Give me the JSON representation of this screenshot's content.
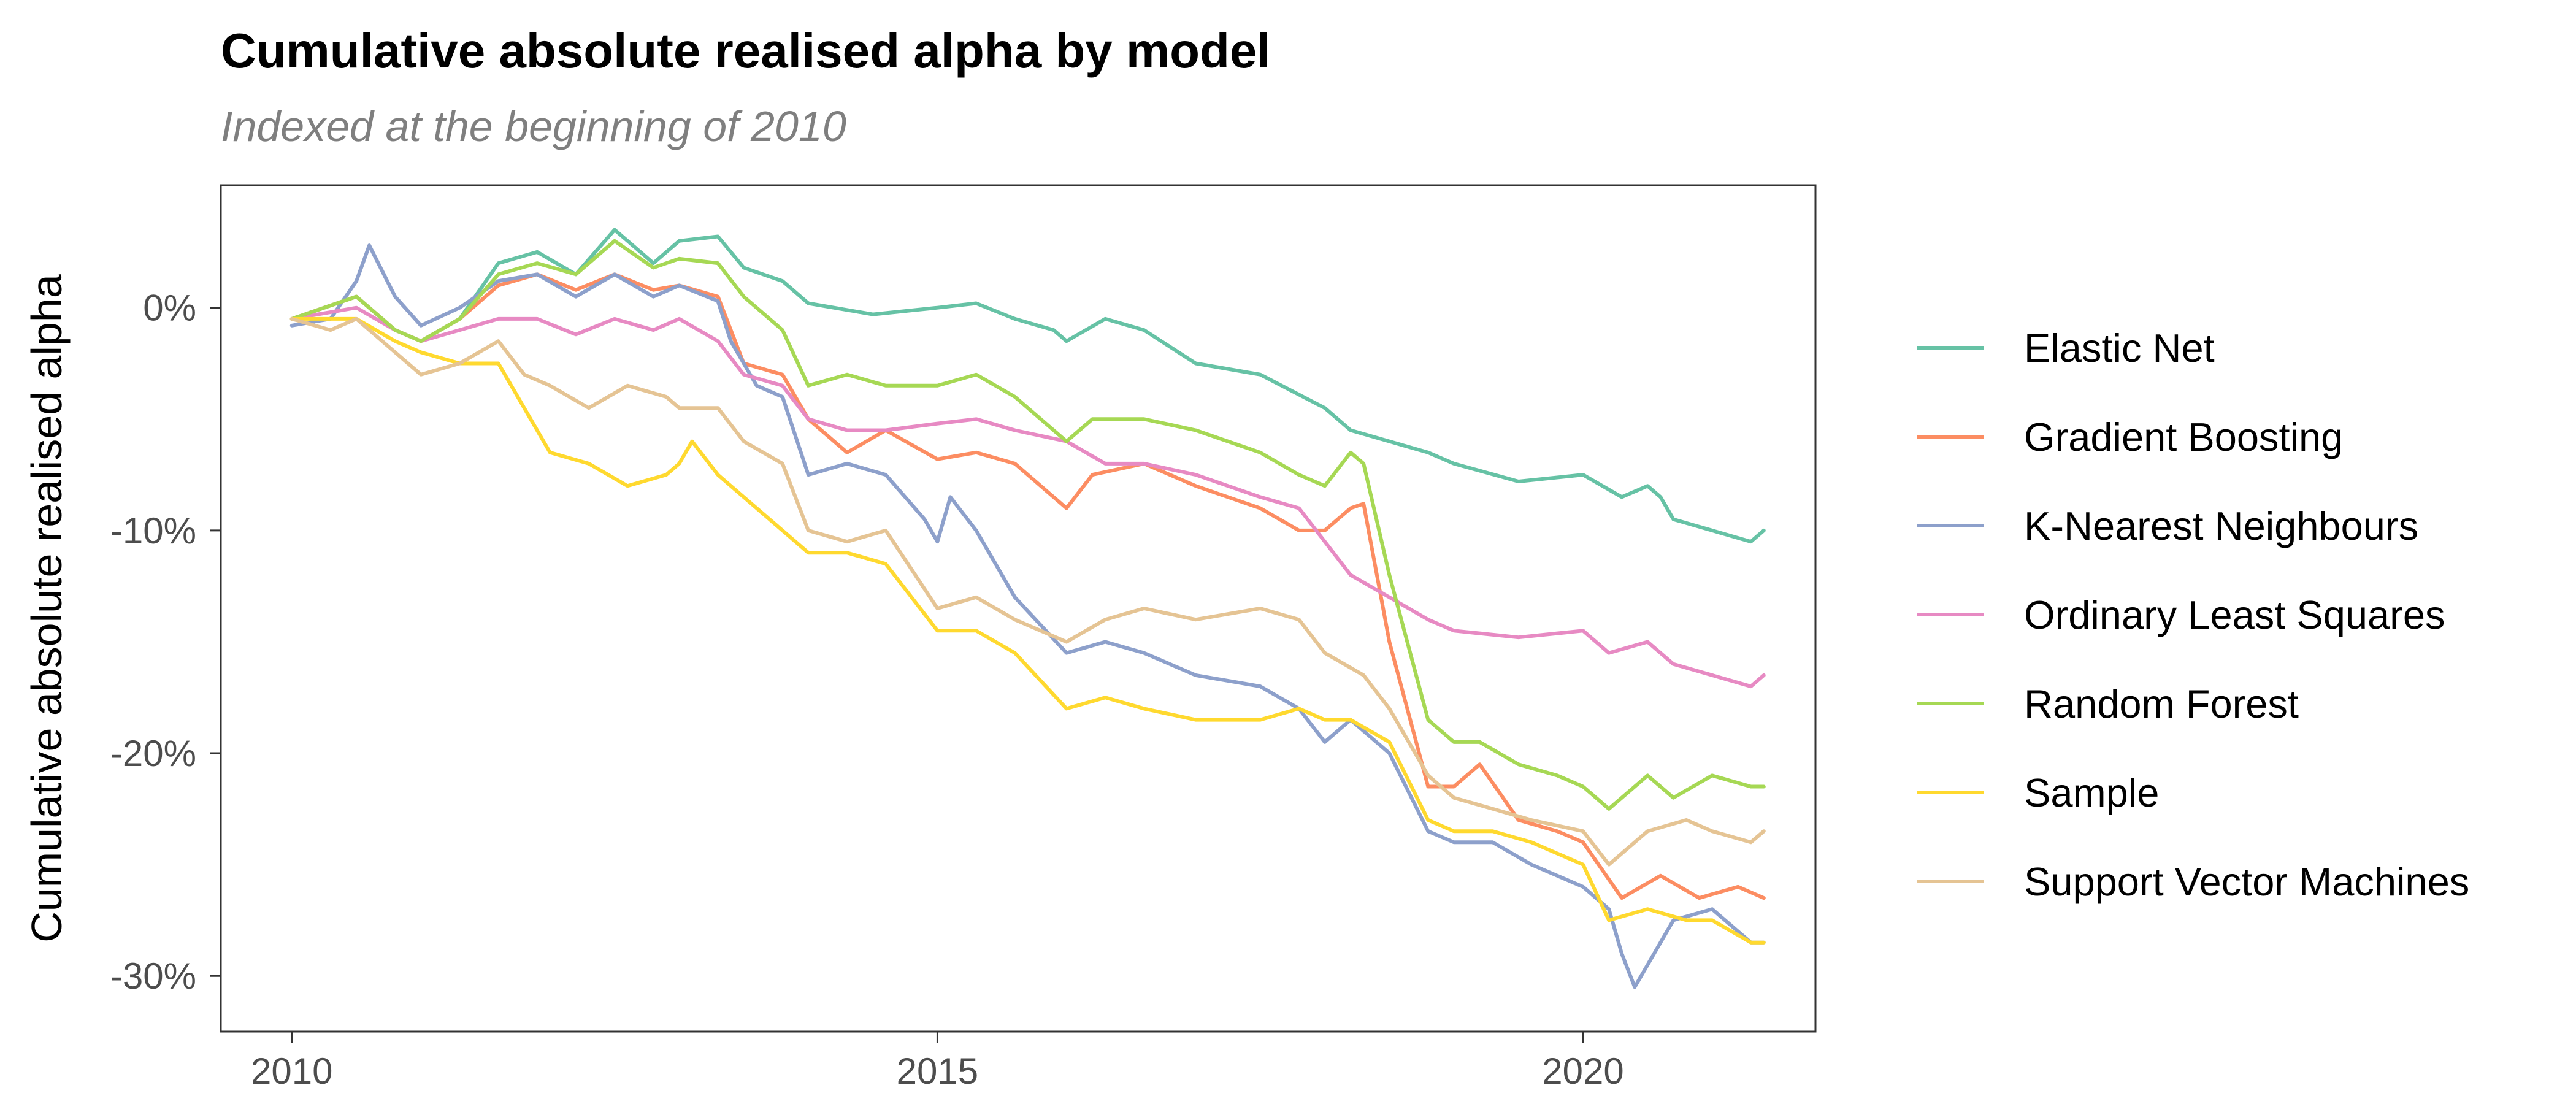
{
  "chart_data": {
    "type": "line",
    "title": "Cumulative absolute realised alpha by model",
    "subtitle": "Indexed at the beginning of 2010",
    "xlabel": "",
    "ylabel": "Cumulative absolute realised alpha",
    "xlim": [
      2009.45,
      2021.8
    ],
    "ylim": [
      -32.5,
      5.5
    ],
    "x_ticks": [
      2010,
      2015,
      2020
    ],
    "x_tick_labels": [
      "2010",
      "2015",
      "2020"
    ],
    "y_ticks": [
      0,
      -10,
      -20,
      -30
    ],
    "y_tick_labels": [
      "0%",
      "-10%",
      "-20%",
      "-30%"
    ],
    "grid": false,
    "legend_position": "right",
    "series": [
      {
        "name": "Elastic Net",
        "color": "#66c2a5",
        "points": [
          [
            2010.0,
            -0.5
          ],
          [
            2010.5,
            0.5
          ],
          [
            2010.8,
            -1.0
          ],
          [
            2011.0,
            -1.5
          ],
          [
            2011.3,
            -0.5
          ],
          [
            2011.6,
            2.0
          ],
          [
            2011.9,
            2.5
          ],
          [
            2012.2,
            1.5
          ],
          [
            2012.5,
            3.5
          ],
          [
            2012.8,
            2.0
          ],
          [
            2013.0,
            3.0
          ],
          [
            2013.3,
            3.2
          ],
          [
            2013.5,
            1.8
          ],
          [
            2013.8,
            1.2
          ],
          [
            2014.0,
            0.2
          ],
          [
            2014.5,
            -0.3
          ],
          [
            2015.0,
            0.0
          ],
          [
            2015.3,
            0.2
          ],
          [
            2015.6,
            -0.5
          ],
          [
            2015.9,
            -1.0
          ],
          [
            2016.0,
            -1.5
          ],
          [
            2016.3,
            -0.5
          ],
          [
            2016.6,
            -1.0
          ],
          [
            2017.0,
            -2.5
          ],
          [
            2017.5,
            -3.0
          ],
          [
            2018.0,
            -4.5
          ],
          [
            2018.2,
            -5.5
          ],
          [
            2018.5,
            -6.0
          ],
          [
            2018.8,
            -6.5
          ],
          [
            2019.0,
            -7.0
          ],
          [
            2019.5,
            -7.8
          ],
          [
            2020.0,
            -7.5
          ],
          [
            2020.3,
            -8.5
          ],
          [
            2020.5,
            -8.0
          ],
          [
            2020.6,
            -8.5
          ],
          [
            2020.7,
            -9.5
          ],
          [
            2021.0,
            -10.0
          ],
          [
            2021.3,
            -10.5
          ],
          [
            2021.4,
            -10.0
          ]
        ]
      },
      {
        "name": "Gradient Boosting",
        "color": "#fc8d62",
        "points": [
          [
            2010.0,
            -0.5
          ],
          [
            2010.5,
            0.5
          ],
          [
            2010.8,
            -1.0
          ],
          [
            2011.0,
            -1.5
          ],
          [
            2011.3,
            -0.5
          ],
          [
            2011.6,
            1.0
          ],
          [
            2011.9,
            1.5
          ],
          [
            2012.2,
            0.8
          ],
          [
            2012.5,
            1.5
          ],
          [
            2012.8,
            0.8
          ],
          [
            2013.0,
            1.0
          ],
          [
            2013.3,
            0.5
          ],
          [
            2013.5,
            -2.5
          ],
          [
            2013.8,
            -3.0
          ],
          [
            2014.0,
            -5.0
          ],
          [
            2014.3,
            -6.5
          ],
          [
            2014.6,
            -5.5
          ],
          [
            2015.0,
            -6.8
          ],
          [
            2015.3,
            -6.5
          ],
          [
            2015.6,
            -7.0
          ],
          [
            2016.0,
            -9.0
          ],
          [
            2016.2,
            -7.5
          ],
          [
            2016.6,
            -7.0
          ],
          [
            2017.0,
            -8.0
          ],
          [
            2017.5,
            -9.0
          ],
          [
            2017.8,
            -10.0
          ],
          [
            2018.0,
            -10.0
          ],
          [
            2018.2,
            -9.0
          ],
          [
            2018.3,
            -8.8
          ],
          [
            2018.5,
            -15.0
          ],
          [
            2018.8,
            -21.5
          ],
          [
            2019.0,
            -21.5
          ],
          [
            2019.2,
            -20.5
          ],
          [
            2019.5,
            -23.0
          ],
          [
            2019.8,
            -23.5
          ],
          [
            2020.0,
            -24.0
          ],
          [
            2020.3,
            -26.5
          ],
          [
            2020.6,
            -25.5
          ],
          [
            2020.9,
            -26.5
          ],
          [
            2021.2,
            -26.0
          ],
          [
            2021.4,
            -26.5
          ]
        ]
      },
      {
        "name": "K-Nearest Neighbours",
        "color": "#8da0cb",
        "points": [
          [
            2010.0,
            -0.8
          ],
          [
            2010.3,
            -0.5
          ],
          [
            2010.5,
            1.2
          ],
          [
            2010.6,
            2.8
          ],
          [
            2010.8,
            0.5
          ],
          [
            2011.0,
            -0.8
          ],
          [
            2011.3,
            0.0
          ],
          [
            2011.6,
            1.2
          ],
          [
            2011.9,
            1.5
          ],
          [
            2012.2,
            0.5
          ],
          [
            2012.5,
            1.5
          ],
          [
            2012.8,
            0.5
          ],
          [
            2013.0,
            1.0
          ],
          [
            2013.3,
            0.3
          ],
          [
            2013.4,
            -1.5
          ],
          [
            2013.6,
            -3.5
          ],
          [
            2013.8,
            -4.0
          ],
          [
            2014.0,
            -7.5
          ],
          [
            2014.3,
            -7.0
          ],
          [
            2014.6,
            -7.5
          ],
          [
            2014.9,
            -9.5
          ],
          [
            2015.0,
            -10.5
          ],
          [
            2015.1,
            -8.5
          ],
          [
            2015.3,
            -10.0
          ],
          [
            2015.6,
            -13.0
          ],
          [
            2016.0,
            -15.5
          ],
          [
            2016.3,
            -15.0
          ],
          [
            2016.6,
            -15.5
          ],
          [
            2017.0,
            -16.5
          ],
          [
            2017.5,
            -17.0
          ],
          [
            2017.8,
            -18.0
          ],
          [
            2018.0,
            -19.5
          ],
          [
            2018.2,
            -18.5
          ],
          [
            2018.5,
            -20.0
          ],
          [
            2018.8,
            -23.5
          ],
          [
            2019.0,
            -24.0
          ],
          [
            2019.3,
            -24.0
          ],
          [
            2019.6,
            -25.0
          ],
          [
            2020.0,
            -26.0
          ],
          [
            2020.2,
            -27.0
          ],
          [
            2020.3,
            -29.0
          ],
          [
            2020.4,
            -30.5
          ],
          [
            2020.5,
            -29.5
          ],
          [
            2020.7,
            -27.5
          ],
          [
            2021.0,
            -27.0
          ],
          [
            2021.3,
            -28.5
          ],
          [
            2021.4,
            -28.5
          ]
        ]
      },
      {
        "name": "Ordinary Least Squares",
        "color": "#e78ac3",
        "points": [
          [
            2010.0,
            -0.5
          ],
          [
            2010.5,
            0.0
          ],
          [
            2010.8,
            -1.0
          ],
          [
            2011.0,
            -1.5
          ],
          [
            2011.3,
            -1.0
          ],
          [
            2011.6,
            -0.5
          ],
          [
            2011.9,
            -0.5
          ],
          [
            2012.2,
            -1.2
          ],
          [
            2012.5,
            -0.5
          ],
          [
            2012.8,
            -1.0
          ],
          [
            2013.0,
            -0.5
          ],
          [
            2013.3,
            -1.5
          ],
          [
            2013.5,
            -3.0
          ],
          [
            2013.8,
            -3.5
          ],
          [
            2014.0,
            -5.0
          ],
          [
            2014.3,
            -5.5
          ],
          [
            2014.6,
            -5.5
          ],
          [
            2015.0,
            -5.2
          ],
          [
            2015.3,
            -5.0
          ],
          [
            2015.6,
            -5.5
          ],
          [
            2016.0,
            -6.0
          ],
          [
            2016.3,
            -7.0
          ],
          [
            2016.6,
            -7.0
          ],
          [
            2017.0,
            -7.5
          ],
          [
            2017.5,
            -8.5
          ],
          [
            2017.8,
            -9.0
          ],
          [
            2018.0,
            -10.5
          ],
          [
            2018.2,
            -12.0
          ],
          [
            2018.5,
            -13.0
          ],
          [
            2018.8,
            -14.0
          ],
          [
            2019.0,
            -14.5
          ],
          [
            2019.5,
            -14.8
          ],
          [
            2020.0,
            -14.5
          ],
          [
            2020.2,
            -15.5
          ],
          [
            2020.5,
            -15.0
          ],
          [
            2020.7,
            -16.0
          ],
          [
            2021.0,
            -16.5
          ],
          [
            2021.3,
            -17.0
          ],
          [
            2021.4,
            -16.5
          ]
        ]
      },
      {
        "name": "Random Forest",
        "color": "#a6d854",
        "points": [
          [
            2010.0,
            -0.5
          ],
          [
            2010.5,
            0.5
          ],
          [
            2010.8,
            -1.0
          ],
          [
            2011.0,
            -1.5
          ],
          [
            2011.3,
            -0.5
          ],
          [
            2011.6,
            1.5
          ],
          [
            2011.9,
            2.0
          ],
          [
            2012.2,
            1.5
          ],
          [
            2012.5,
            3.0
          ],
          [
            2012.8,
            1.8
          ],
          [
            2013.0,
            2.2
          ],
          [
            2013.3,
            2.0
          ],
          [
            2013.5,
            0.5
          ],
          [
            2013.8,
            -1.0
          ],
          [
            2014.0,
            -3.5
          ],
          [
            2014.3,
            -3.0
          ],
          [
            2014.6,
            -3.5
          ],
          [
            2015.0,
            -3.5
          ],
          [
            2015.3,
            -3.0
          ],
          [
            2015.6,
            -4.0
          ],
          [
            2016.0,
            -6.0
          ],
          [
            2016.2,
            -5.0
          ],
          [
            2016.6,
            -5.0
          ],
          [
            2017.0,
            -5.5
          ],
          [
            2017.5,
            -6.5
          ],
          [
            2017.8,
            -7.5
          ],
          [
            2018.0,
            -8.0
          ],
          [
            2018.2,
            -6.5
          ],
          [
            2018.3,
            -7.0
          ],
          [
            2018.5,
            -12.0
          ],
          [
            2018.8,
            -18.5
          ],
          [
            2019.0,
            -19.5
          ],
          [
            2019.2,
            -19.5
          ],
          [
            2019.5,
            -20.5
          ],
          [
            2019.8,
            -21.0
          ],
          [
            2020.0,
            -21.5
          ],
          [
            2020.2,
            -22.5
          ],
          [
            2020.5,
            -21.0
          ],
          [
            2020.7,
            -22.0
          ],
          [
            2021.0,
            -21.0
          ],
          [
            2021.3,
            -21.5
          ],
          [
            2021.4,
            -21.5
          ]
        ]
      },
      {
        "name": "Sample",
        "color": "#ffd92f",
        "points": [
          [
            2010.0,
            -0.5
          ],
          [
            2010.5,
            -0.5
          ],
          [
            2010.8,
            -1.5
          ],
          [
            2011.0,
            -2.0
          ],
          [
            2011.3,
            -2.5
          ],
          [
            2011.6,
            -2.5
          ],
          [
            2011.8,
            -4.5
          ],
          [
            2012.0,
            -6.5
          ],
          [
            2012.3,
            -7.0
          ],
          [
            2012.6,
            -8.0
          ],
          [
            2012.9,
            -7.5
          ],
          [
            2013.0,
            -7.0
          ],
          [
            2013.1,
            -6.0
          ],
          [
            2013.3,
            -7.5
          ],
          [
            2013.6,
            -9.0
          ],
          [
            2013.8,
            -10.0
          ],
          [
            2014.0,
            -11.0
          ],
          [
            2014.3,
            -11.0
          ],
          [
            2014.6,
            -11.5
          ],
          [
            2015.0,
            -14.5
          ],
          [
            2015.3,
            -14.5
          ],
          [
            2015.6,
            -15.5
          ],
          [
            2016.0,
            -18.0
          ],
          [
            2016.3,
            -17.5
          ],
          [
            2016.6,
            -18.0
          ],
          [
            2017.0,
            -18.5
          ],
          [
            2017.5,
            -18.5
          ],
          [
            2017.8,
            -18.0
          ],
          [
            2018.0,
            -18.5
          ],
          [
            2018.2,
            -18.5
          ],
          [
            2018.5,
            -19.5
          ],
          [
            2018.8,
            -23.0
          ],
          [
            2019.0,
            -23.5
          ],
          [
            2019.3,
            -23.5
          ],
          [
            2019.6,
            -24.0
          ],
          [
            2020.0,
            -25.0
          ],
          [
            2020.2,
            -27.5
          ],
          [
            2020.5,
            -27.0
          ],
          [
            2020.8,
            -27.5
          ],
          [
            2021.0,
            -27.5
          ],
          [
            2021.3,
            -28.5
          ],
          [
            2021.4,
            -28.5
          ]
        ]
      },
      {
        "name": "Support Vector Machines",
        "color": "#e5c494",
        "points": [
          [
            2010.0,
            -0.5
          ],
          [
            2010.3,
            -1.0
          ],
          [
            2010.5,
            -0.5
          ],
          [
            2010.8,
            -2.0
          ],
          [
            2011.0,
            -3.0
          ],
          [
            2011.3,
            -2.5
          ],
          [
            2011.6,
            -1.5
          ],
          [
            2011.8,
            -3.0
          ],
          [
            2012.0,
            -3.5
          ],
          [
            2012.3,
            -4.5
          ],
          [
            2012.6,
            -3.5
          ],
          [
            2012.9,
            -4.0
          ],
          [
            2013.0,
            -4.5
          ],
          [
            2013.3,
            -4.5
          ],
          [
            2013.5,
            -6.0
          ],
          [
            2013.8,
            -7.0
          ],
          [
            2014.0,
            -10.0
          ],
          [
            2014.3,
            -10.5
          ],
          [
            2014.6,
            -10.0
          ],
          [
            2015.0,
            -13.5
          ],
          [
            2015.3,
            -13.0
          ],
          [
            2015.6,
            -14.0
          ],
          [
            2016.0,
            -15.0
          ],
          [
            2016.3,
            -14.0
          ],
          [
            2016.6,
            -13.5
          ],
          [
            2017.0,
            -14.0
          ],
          [
            2017.5,
            -13.5
          ],
          [
            2017.8,
            -14.0
          ],
          [
            2018.0,
            -15.5
          ],
          [
            2018.3,
            -16.5
          ],
          [
            2018.5,
            -18.0
          ],
          [
            2018.8,
            -21.0
          ],
          [
            2019.0,
            -22.0
          ],
          [
            2019.3,
            -22.5
          ],
          [
            2019.6,
            -23.0
          ],
          [
            2020.0,
            -23.5
          ],
          [
            2020.2,
            -25.0
          ],
          [
            2020.5,
            -23.5
          ],
          [
            2020.8,
            -23.0
          ],
          [
            2021.0,
            -23.5
          ],
          [
            2021.3,
            -24.0
          ],
          [
            2021.4,
            -23.5
          ]
        ]
      }
    ]
  }
}
